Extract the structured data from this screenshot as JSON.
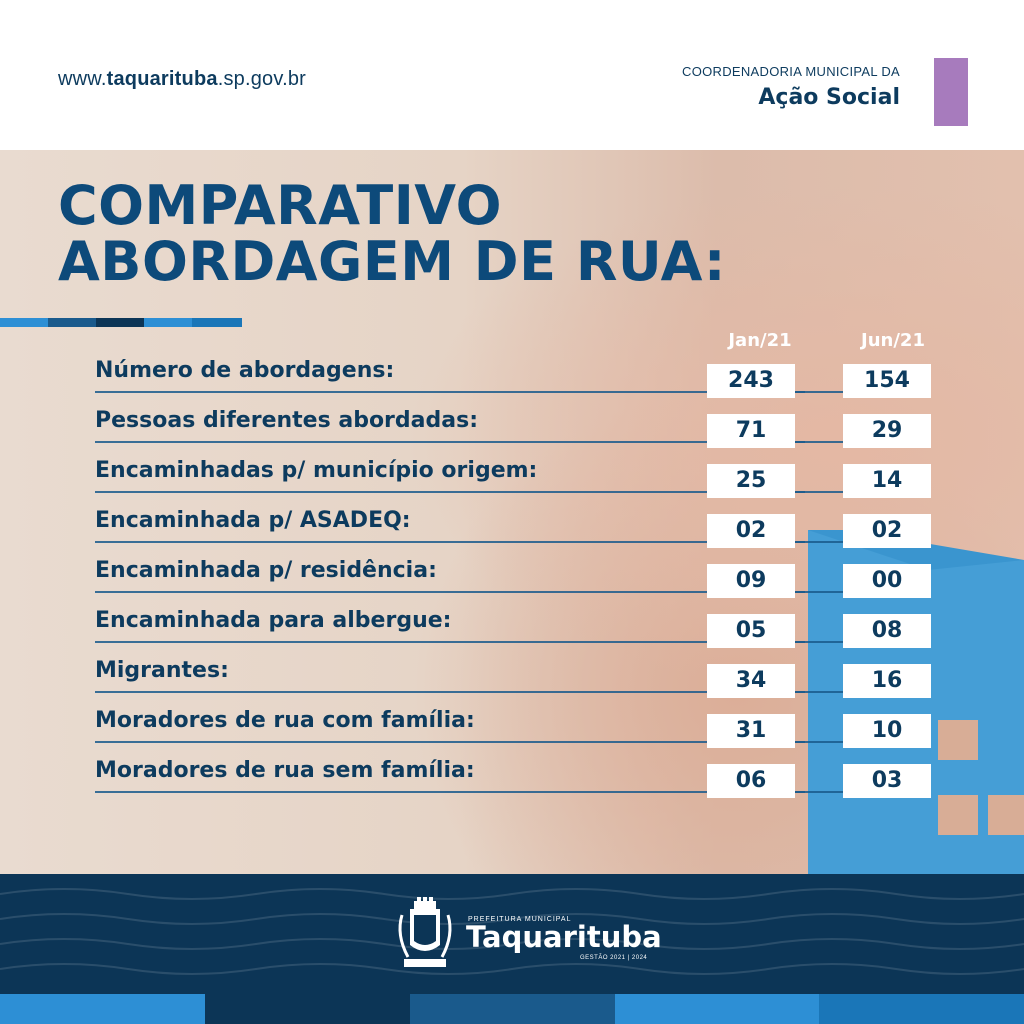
{
  "header": {
    "site_prefix": "www.",
    "site_bold": "taquarituba",
    "site_suffix": ".sp.gov.br",
    "coord_top": "COORDENADORIA MUNICIPAL DA",
    "coord_bottom": "Ação Social",
    "accent_color": "#a77bbd"
  },
  "title": {
    "line1": "COMPARATIVO",
    "line2": "ABORDAGEM DE RUA:"
  },
  "columns": [
    "Jan/21",
    "Jun/21"
  ],
  "rows": [
    {
      "label": "Número de abordagens:",
      "jan": "243",
      "jun": "154"
    },
    {
      "label": "Pessoas diferentes abordadas:",
      "jan": "71",
      "jun": "29"
    },
    {
      "label": "Encaminhadas p/ município origem:",
      "jan": "25",
      "jun": "14"
    },
    {
      "label": "Encaminhada p/ ASADEQ:",
      "jan": "02",
      "jun": "02"
    },
    {
      "label": "Encaminhada p/ residência:",
      "jan": "09",
      "jun": "00"
    },
    {
      "label": "Encaminhada para albergue:",
      "jan": "05",
      "jun": "08"
    },
    {
      "label": "Migrantes:",
      "jan": "34",
      "jun": "16"
    },
    {
      "label": "Moradores de rua com família:",
      "jan": "31",
      "jun": "10"
    },
    {
      "label": "Moradores de rua sem família:",
      "jan": "06",
      "jun": "03"
    }
  ],
  "footer": {
    "small": "PREFEITURA MUNICIPAL",
    "name": "Taquarituba",
    "gestao": "GESTÃO 2021 | 2024",
    "primary_color": "#0c3556"
  }
}
